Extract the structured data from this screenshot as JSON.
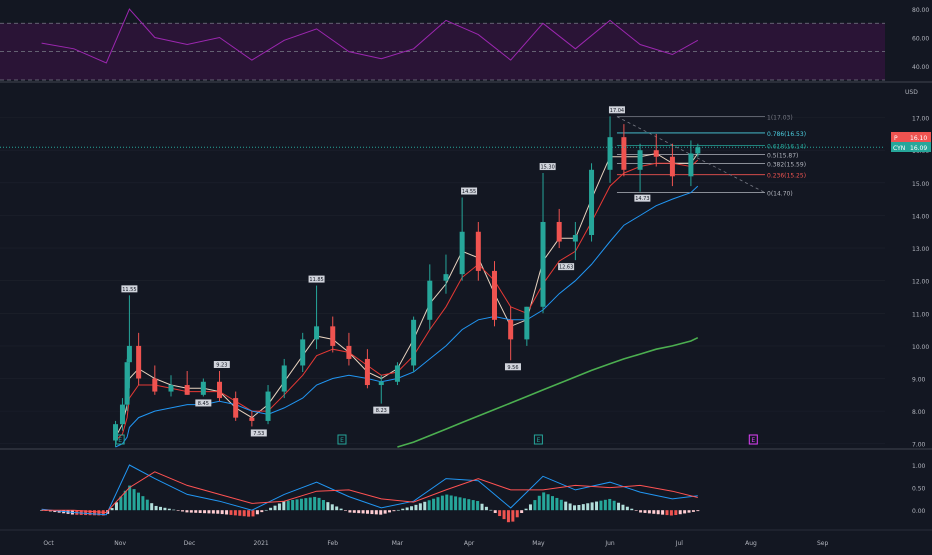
{
  "colors": {
    "background": "#131722",
    "grid": "#1e222d",
    "up": "#26a69a",
    "down": "#ef5350",
    "rsi_line": "#9c27b0",
    "rsi_band": "#2a1436",
    "ema_fast": "#e8d4c0",
    "ema_mid": "#e53935",
    "ema_slow": "#2196f3",
    "sma_long": "#4caf50",
    "macd_line": "#2196f3",
    "signal_line": "#ff5252",
    "axis_text": "#b2b5be",
    "fib_line": "#787b86"
  },
  "price_axis": {
    "unit": "USD",
    "labels": [
      "17.00",
      "16.00",
      "15.00",
      "14.00",
      "13.00",
      "12.00",
      "11.00",
      "10.00",
      "9.00",
      "8.00",
      "7.00"
    ]
  },
  "rsi_axis": {
    "labels": [
      "80.00",
      "60.00",
      "40.00"
    ]
  },
  "macd_axis": {
    "labels": [
      "1.00",
      "0.50",
      "0.00"
    ]
  },
  "time_axis": {
    "labels": [
      "Oct",
      "Nov",
      "Dec",
      "2021",
      "Feb",
      "Mar",
      "Apr",
      "May",
      "Jun",
      "Jul",
      "Aug",
      "Sep"
    ]
  },
  "badges": {
    "last_price_top": "16.10",
    "last_price_bottom": "16.09",
    "tag_top": "P",
    "tag_bottom": "CYN"
  },
  "fib_levels": [
    {
      "label": "1(17.03)",
      "price": 17.03,
      "color": "#787b86"
    },
    {
      "label": "0.786(16.53)",
      "price": 16.53,
      "color": "#4dd0e1"
    },
    {
      "label": "0.618(16.14)",
      "price": 16.14,
      "color": "#26a69a"
    },
    {
      "label": "0.5(15.87)",
      "price": 15.87,
      "color": "#b2b5be"
    },
    {
      "label": "0.382(15.59)",
      "price": 15.59,
      "color": "#b2b5be"
    },
    {
      "label": "0.236(15.25)",
      "price": 15.25,
      "color": "#ef5350"
    },
    {
      "label": "0(14.70)",
      "price": 14.7,
      "color": "#b2b5be"
    }
  ],
  "peak_labels": [
    {
      "text": "11.55",
      "date": "2020-11-05",
      "price": 11.55,
      "kind": "high"
    },
    {
      "text": "9.23",
      "date": "2020-12-15",
      "price": 9.23,
      "kind": "high"
    },
    {
      "text": "8.45",
      "date": "2020-12-07",
      "price": 8.45,
      "kind": "low"
    },
    {
      "text": "7.53",
      "date": "2020-12-31",
      "price": 7.53,
      "kind": "low"
    },
    {
      "text": "11.85",
      "date": "2021-01-25",
      "price": 11.85,
      "kind": "high"
    },
    {
      "text": "8.23",
      "date": "2021-02-22",
      "price": 8.23,
      "kind": "low"
    },
    {
      "text": "14.55",
      "date": "2021-04-01",
      "price": 14.55,
      "kind": "high"
    },
    {
      "text": "9.56",
      "date": "2021-04-20",
      "price": 9.56,
      "kind": "low"
    },
    {
      "text": "15.30",
      "date": "2021-05-05",
      "price": 15.3,
      "kind": "high"
    },
    {
      "text": "12.63",
      "date": "2021-05-13",
      "price": 12.63,
      "kind": "low"
    },
    {
      "text": "17.04",
      "date": "2021-06-04",
      "price": 17.04,
      "kind": "high"
    },
    {
      "text": "14.73",
      "date": "2021-06-15",
      "price": 14.73,
      "kind": "low"
    }
  ],
  "event_markers": [
    {
      "date": "2020-11-01",
      "icon": "earnings-icon"
    },
    {
      "date": "2021-02-05",
      "icon": "earnings-icon"
    },
    {
      "date": "2021-05-01",
      "icon": "earnings-icon"
    },
    {
      "date": "2021-08-02",
      "icon": "earnings-icon"
    }
  ],
  "chart_data": [
    {
      "type": "line",
      "name_hint": "RSI panel",
      "title": "",
      "ylim": [
        30,
        85
      ],
      "guides": [
        70,
        50,
        30
      ],
      "x": [
        "2020-09-28",
        "2020-10-12",
        "2020-10-26",
        "2020-11-05",
        "2020-11-16",
        "2020-11-30",
        "2020-12-14",
        "2020-12-28",
        "2021-01-11",
        "2021-01-25",
        "2021-02-08",
        "2021-02-22",
        "2021-03-08",
        "2021-03-22",
        "2021-04-05",
        "2021-04-19",
        "2021-05-03",
        "2021-05-17",
        "2021-06-01",
        "2021-06-14",
        "2021-06-28",
        "2021-07-09"
      ],
      "values": [
        56,
        52,
        42,
        80,
        60,
        55,
        60,
        44,
        58,
        66,
        50,
        45,
        52,
        72,
        62,
        44,
        70,
        52,
        72,
        55,
        48,
        58
      ]
    },
    {
      "type": "candlestick",
      "name_hint": "price panel",
      "title": "",
      "ylabel": "USD",
      "ylim": [
        6.9,
        18.0
      ],
      "x": [
        "2020-10-30",
        "2020-11-02",
        "2020-11-04",
        "2020-11-05",
        "2020-11-09",
        "2020-11-16",
        "2020-11-23",
        "2020-11-30",
        "2020-12-07",
        "2020-12-14",
        "2020-12-21",
        "2020-12-28",
        "2021-01-04",
        "2021-01-11",
        "2021-01-19",
        "2021-01-25",
        "2021-02-01",
        "2021-02-08",
        "2021-02-16",
        "2021-02-22",
        "2021-03-01",
        "2021-03-08",
        "2021-03-15",
        "2021-03-22",
        "2021-03-29",
        "2021-04-05",
        "2021-04-12",
        "2021-04-19",
        "2021-04-26",
        "2021-05-03",
        "2021-05-10",
        "2021-05-17",
        "2021-05-24",
        "2021-06-01",
        "2021-06-07",
        "2021-06-14",
        "2021-06-21",
        "2021-06-28",
        "2021-07-06",
        "2021-07-09"
      ],
      "open": [
        7.1,
        7.6,
        8.2,
        9.5,
        10.0,
        9.0,
        8.6,
        8.8,
        8.5,
        8.9,
        8.4,
        7.8,
        7.7,
        8.6,
        9.4,
        10.2,
        10.6,
        10.0,
        9.6,
        8.8,
        8.9,
        9.4,
        10.8,
        12.0,
        12.2,
        13.5,
        12.3,
        10.8,
        10.2,
        11.2,
        13.8,
        13.2,
        13.4,
        15.4,
        16.4,
        15.4,
        16.0,
        15.8,
        15.2,
        15.9
      ],
      "high": [
        7.7,
        8.4,
        9.6,
        11.55,
        10.4,
        9.4,
        9.1,
        9.23,
        9.0,
        9.23,
        8.6,
        8.0,
        8.8,
        9.6,
        10.4,
        11.85,
        10.9,
        10.4,
        9.9,
        9.1,
        9.5,
        10.9,
        12.5,
        12.8,
        14.55,
        13.8,
        12.6,
        11.2,
        11.2,
        15.3,
        14.2,
        13.8,
        15.6,
        17.04,
        16.8,
        16.2,
        16.5,
        16.2,
        16.3,
        16.2
      ],
      "low": [
        6.9,
        7.4,
        8.0,
        8.7,
        8.8,
        8.5,
        8.45,
        8.5,
        8.45,
        8.3,
        7.7,
        7.53,
        7.6,
        8.4,
        9.2,
        9.9,
        9.8,
        9.4,
        8.7,
        8.23,
        8.8,
        9.2,
        10.5,
        11.6,
        12.0,
        12.0,
        10.6,
        9.56,
        10.0,
        11.0,
        13.0,
        12.63,
        13.2,
        15.0,
        15.2,
        14.73,
        15.5,
        14.9,
        14.9,
        15.8
      ],
      "close": [
        7.6,
        8.2,
        9.5,
        10.0,
        9.0,
        8.6,
        8.8,
        8.5,
        8.9,
        8.4,
        7.8,
        7.7,
        8.6,
        9.4,
        10.2,
        10.6,
        10.0,
        9.6,
        8.8,
        8.9,
        9.4,
        10.8,
        12.0,
        12.2,
        13.5,
        12.3,
        10.8,
        10.2,
        11.2,
        13.8,
        13.2,
        13.4,
        15.4,
        16.4,
        15.4,
        16.0,
        15.8,
        15.2,
        15.9,
        16.09
      ],
      "overlays": [
        {
          "name": "EMA fast",
          "color_key": "ema_fast",
          "values": [
            7.2,
            7.6,
            8.2,
            9.0,
            9.3,
            9.0,
            8.8,
            8.7,
            8.7,
            8.6,
            8.1,
            7.8,
            8.2,
            8.9,
            9.7,
            10.3,
            10.2,
            9.8,
            9.2,
            9.0,
            9.3,
            10.2,
            11.3,
            11.9,
            12.9,
            12.7,
            11.6,
            10.6,
            10.8,
            12.6,
            13.3,
            13.3,
            14.5,
            15.8,
            15.8,
            15.8,
            15.9,
            15.6,
            15.6,
            15.9
          ]
        },
        {
          "name": "EMA mid",
          "color_key": "ema_mid",
          "values": [
            7.1,
            7.3,
            7.8,
            8.4,
            8.8,
            8.8,
            8.7,
            8.6,
            8.6,
            8.6,
            8.3,
            8.0,
            8.0,
            8.5,
            9.1,
            9.7,
            9.9,
            9.8,
            9.4,
            9.1,
            9.2,
            9.7,
            10.5,
            11.2,
            12.1,
            12.5,
            12.0,
            11.2,
            11.0,
            11.9,
            12.6,
            12.9,
            13.8,
            14.9,
            15.3,
            15.5,
            15.6,
            15.6,
            15.5,
            15.7
          ]
        },
        {
          "name": "EMA slow",
          "color_key": "ema_slow",
          "values": [
            6.9,
            7.0,
            7.2,
            7.5,
            7.8,
            8.0,
            8.1,
            8.2,
            8.2,
            8.3,
            8.2,
            8.0,
            7.9,
            8.1,
            8.4,
            8.8,
            9.0,
            9.1,
            9.0,
            8.9,
            9.0,
            9.2,
            9.6,
            10.0,
            10.5,
            10.8,
            10.9,
            10.8,
            10.8,
            11.1,
            11.6,
            12.0,
            12.5,
            13.2,
            13.7,
            14.0,
            14.3,
            14.5,
            14.7,
            14.9
          ]
        },
        {
          "name": "SMA long",
          "color_key": "sma_long",
          "from_index": 20,
          "values": [
            null,
            null,
            null,
            null,
            null,
            null,
            null,
            null,
            null,
            null,
            null,
            null,
            null,
            null,
            null,
            null,
            null,
            null,
            null,
            null,
            6.9,
            7.05,
            7.25,
            7.45,
            7.65,
            7.85,
            8.05,
            8.25,
            8.45,
            8.65,
            8.85,
            9.05,
            9.25,
            9.45,
            9.6,
            9.75,
            9.9,
            10.0,
            10.15,
            10.25
          ]
        }
      ]
    },
    {
      "type": "bar",
      "name_hint": "MACD panel",
      "title": "",
      "ylim": [
        -0.35,
        1.2
      ],
      "x": [
        "2020-09-28",
        "2020-10-12",
        "2020-10-26",
        "2020-11-05",
        "2020-11-16",
        "2020-11-30",
        "2020-12-14",
        "2020-12-28",
        "2021-01-11",
        "2021-01-25",
        "2021-02-08",
        "2021-02-22",
        "2021-03-08",
        "2021-03-22",
        "2021-04-05",
        "2021-04-19",
        "2021-05-03",
        "2021-05-17",
        "2021-06-01",
        "2021-06-14",
        "2021-06-28",
        "2021-07-09"
      ],
      "series": [
        {
          "name": "histogram",
          "values": [
            0.0,
            -0.1,
            -0.12,
            0.55,
            0.1,
            -0.05,
            -0.08,
            -0.15,
            0.2,
            0.3,
            -0.05,
            -0.1,
            0.1,
            0.35,
            0.2,
            -0.3,
            0.4,
            0.1,
            0.25,
            -0.05,
            -0.12,
            -0.02
          ]
        },
        {
          "name": "macd",
          "values": [
            0.02,
            -0.05,
            -0.1,
            1.0,
            0.7,
            0.35,
            0.2,
            0.0,
            0.35,
            0.62,
            0.3,
            0.05,
            0.2,
            0.7,
            0.65,
            0.05,
            0.75,
            0.45,
            0.62,
            0.4,
            0.25,
            0.32
          ]
        },
        {
          "name": "signal",
          "values": [
            0.0,
            0.0,
            -0.05,
            0.5,
            0.85,
            0.55,
            0.35,
            0.15,
            0.2,
            0.42,
            0.45,
            0.25,
            0.18,
            0.45,
            0.7,
            0.45,
            0.45,
            0.55,
            0.5,
            0.55,
            0.42,
            0.28
          ]
        }
      ]
    }
  ]
}
